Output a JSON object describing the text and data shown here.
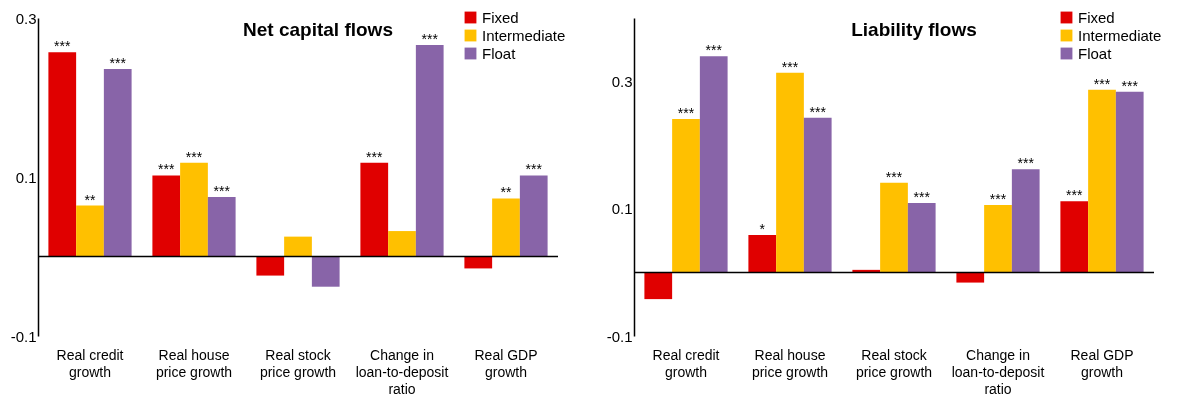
{
  "chart_data": [
    {
      "type": "bar",
      "title": "Net capital flows",
      "categories": [
        "Real credit growth",
        "Real house price growth",
        "Real stock price growth",
        "Change in loan-to-deposit ratio",
        "Real GDP growth"
      ],
      "ylim": [
        -0.1,
        0.3
      ],
      "yticks": [
        -0.1,
        0.1,
        0.3
      ],
      "grid": false,
      "legend": "top right",
      "ref_lines": [
        {
          "axis": "y",
          "value": 0,
          "color": "#000000"
        }
      ],
      "series": [
        {
          "name": "Fixed",
          "color": "#e00000",
          "values": [
            0.257,
            0.102,
            -0.024,
            0.118,
            -0.015
          ],
          "value_labels": [
            "***",
            "***",
            null,
            "***",
            null
          ]
        },
        {
          "name": "Intermediate",
          "color": "#ffc000",
          "values": [
            0.064,
            0.118,
            0.025,
            0.032,
            0.073
          ],
          "value_labels": [
            "**",
            "***",
            null,
            null,
            "**"
          ]
        },
        {
          "name": "Float",
          "color": "#8864a8",
          "values": [
            0.236,
            0.075,
            -0.038,
            0.266,
            0.102
          ],
          "value_labels": [
            "***",
            "***",
            null,
            "***",
            "***"
          ]
        }
      ]
    },
    {
      "type": "bar",
      "title": "Liability flows",
      "categories": [
        "Real credit growth",
        "Real house price growth",
        "Real stock price growth",
        "Change in loan-to-deposit ratio",
        "Real GDP growth"
      ],
      "ylim": [
        -0.1,
        0.4
      ],
      "yticks": [
        -0.1,
        0.1,
        0.3
      ],
      "grid": false,
      "legend": "top right",
      "ref_lines": [
        {
          "axis": "y",
          "value": 0,
          "color": "#000000"
        }
      ],
      "series": [
        {
          "name": "Fixed",
          "color": "#e00000",
          "values": [
            -0.042,
            0.059,
            0.004,
            -0.016,
            0.112
          ],
          "value_labels": [
            null,
            "*",
            null,
            null,
            "***"
          ]
        },
        {
          "name": "Intermediate",
          "color": "#ffc000",
          "values": [
            0.241,
            0.314,
            0.141,
            0.106,
            0.287
          ],
          "value_labels": [
            "***",
            "***",
            "***",
            "***",
            "***"
          ]
        },
        {
          "name": "Float",
          "color": "#8864a8",
          "values": [
            0.34,
            0.243,
            0.109,
            0.162,
            0.284
          ],
          "value_labels": [
            "***",
            "***",
            "***",
            "***",
            "***"
          ]
        }
      ]
    }
  ]
}
